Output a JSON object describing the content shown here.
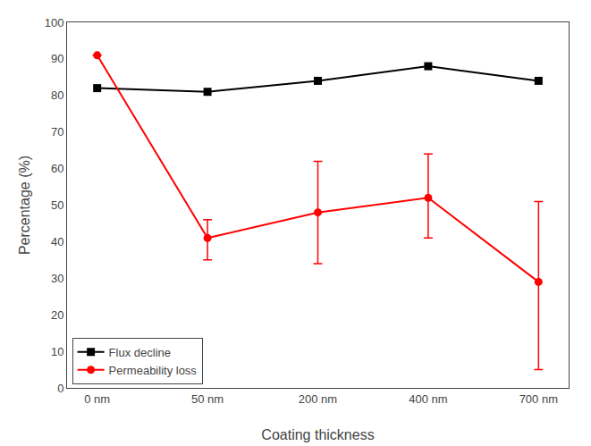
{
  "chart_data": {
    "type": "line",
    "categories": [
      "0 nm",
      "50 nm",
      "200 nm",
      "400 nm",
      "700 nm"
    ],
    "series": [
      {
        "name": "Flux decline",
        "color": "#000000",
        "marker": "square",
        "values": [
          82,
          81,
          84,
          88,
          84
        ]
      },
      {
        "name": "Permeability loss",
        "color": "#ff0000",
        "marker": "circle",
        "values": [
          91,
          41,
          48,
          52,
          29
        ],
        "yerr_lower": [
          0,
          6,
          14,
          11,
          24
        ],
        "yerr_upper": [
          0,
          5,
          14,
          12,
          22
        ]
      }
    ],
    "xlabel": "Coating thickness",
    "ylabel": "Percentage (%)",
    "ylim": [
      0,
      100
    ],
    "yticks": [
      0,
      10,
      20,
      30,
      40,
      50,
      60,
      70,
      80,
      90,
      100
    ],
    "grid": false,
    "legend": "lower left"
  }
}
